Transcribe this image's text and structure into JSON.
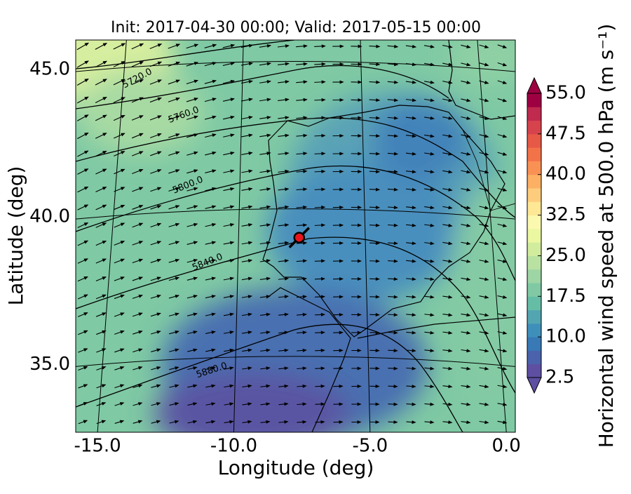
{
  "title": "Init: 2017-04-30 00:00; Valid: 2017-05-15 00:00",
  "x_axis": {
    "label": "Longitude (deg)",
    "lim": [
      -15.8,
      0.33
    ],
    "ticks": [
      {
        "value": -15,
        "label": "-15.0"
      },
      {
        "value": -10,
        "label": "-10.0"
      },
      {
        "value": -5,
        "label": "-5.0"
      },
      {
        "value": 0,
        "label": "0.0"
      }
    ]
  },
  "y_axis": {
    "label": "Latitude (deg)",
    "lim": [
      32.7,
      46.0
    ],
    "ticks": [
      {
        "value": 35,
        "label": "35.0"
      },
      {
        "value": 40,
        "label": "40.0"
      },
      {
        "value": 45,
        "label": "45.0"
      }
    ]
  },
  "colorbar": {
    "label": "Horizontal wind speed at 500.0 hPa (m s⁻¹)",
    "lim": [
      2.5,
      55
    ],
    "ticks": [
      {
        "value": 2.5,
        "label": "2.5"
      },
      {
        "value": 10,
        "label": "10.0"
      },
      {
        "value": 17.5,
        "label": "17.5"
      },
      {
        "value": 25,
        "label": "25.0"
      },
      {
        "value": 32.5,
        "label": "32.5"
      },
      {
        "value": 40,
        "label": "40.0"
      },
      {
        "value": 47.5,
        "label": "47.5"
      },
      {
        "value": 55,
        "label": "55.0"
      }
    ],
    "colors": [
      "#5e4fa2",
      "#4a63ac",
      "#3879b6",
      "#3f8fbb",
      "#53a6b1",
      "#66bda6",
      "#80c9a4",
      "#9dd5a4",
      "#b8e1a2",
      "#d2ec9d",
      "#ebf7a1",
      "#fbf8b0",
      "#fee795",
      "#fdcd7d",
      "#fcb064",
      "#f99155",
      "#f37349",
      "#e75947",
      "#d7434d",
      "#bf2a4e",
      "#9e0142"
    ]
  },
  "contour_labels": [
    "5720.0",
    "5760.0",
    "5800.0",
    "5840.0",
    "5880.0"
  ],
  "marker": {
    "lon": -7.6,
    "lat": 39.3,
    "color": "#e8141c"
  }
}
